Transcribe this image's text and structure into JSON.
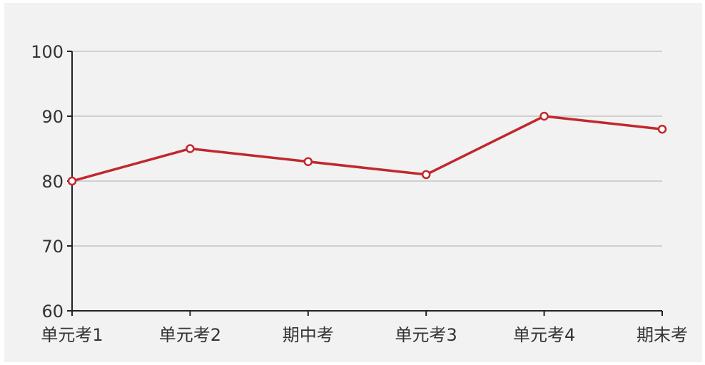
{
  "chart_data": {
    "type": "line",
    "categories": [
      "单元考1",
      "单元考2",
      "期中考",
      "单元考3",
      "单元考4",
      "期末考"
    ],
    "series": [
      {
        "values": [
          80,
          85,
          83,
          81,
          90,
          88
        ]
      }
    ],
    "y_ticks": [
      "60",
      "70",
      "80",
      "90",
      "100"
    ],
    "ylim": [
      60,
      100
    ],
    "grid": true,
    "title": "",
    "xlabel": "",
    "ylabel": "",
    "colors": {
      "line": "#c0282d",
      "marker_fill": "#ffffff",
      "grid": "#c4c4c4",
      "axis": "#222222",
      "background": "#f2f2f2"
    }
  }
}
